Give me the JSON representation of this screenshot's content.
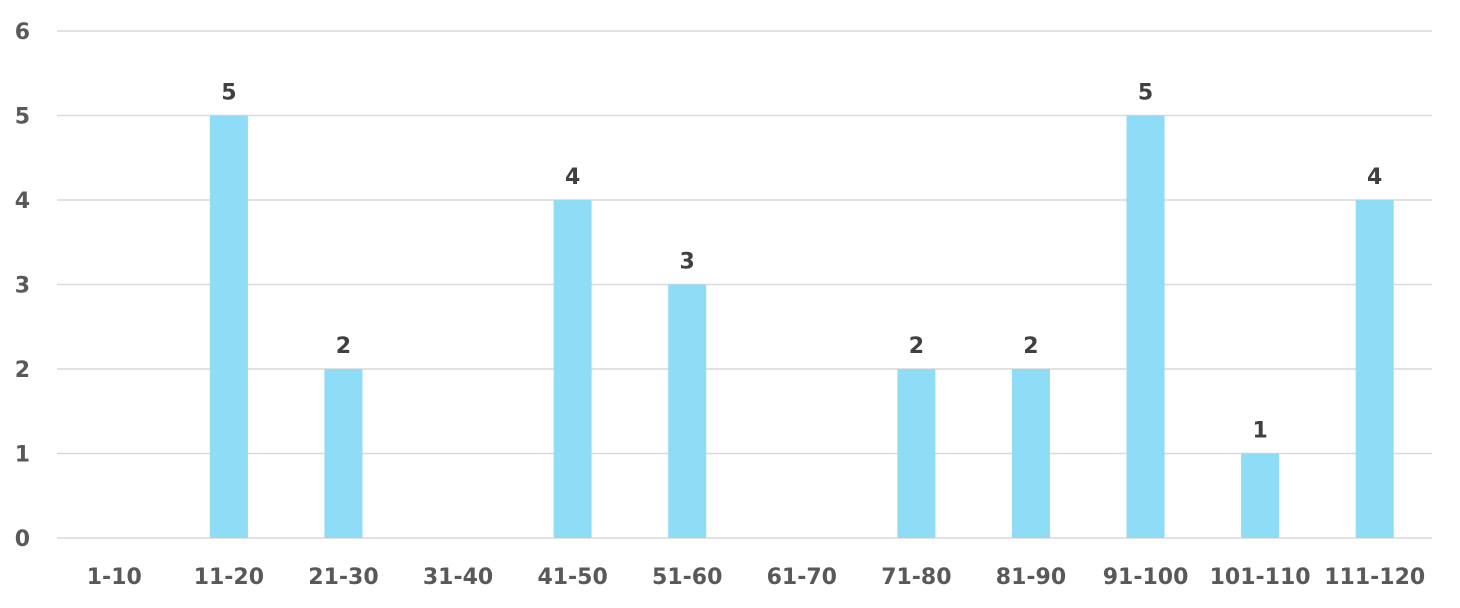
{
  "chart_data": {
    "type": "bar",
    "title": "",
    "xlabel": "",
    "ylabel": "",
    "categories": [
      "1-10",
      "11-20",
      "21-30",
      "31-40",
      "41-50",
      "51-60",
      "61-70",
      "71-80",
      "81-90",
      "91-100",
      "101-110",
      "111-120"
    ],
    "values": [
      0,
      5,
      2,
      0,
      4,
      3,
      0,
      2,
      2,
      5,
      1,
      4
    ],
    "data_labels": [
      "",
      "5",
      "2",
      "",
      "4",
      "3",
      "",
      "2",
      "2",
      "5",
      "1",
      "4"
    ],
    "y_ticks": [
      "0",
      "1",
      "2",
      "3",
      "4",
      "5",
      "6"
    ],
    "ylim": [
      0,
      6
    ],
    "grid": true,
    "legend": "none",
    "colors": {
      "bar": "#8fdcf7",
      "grid": "#d9d9d9",
      "tick_text": "#595959",
      "label_text": "#404040"
    }
  }
}
